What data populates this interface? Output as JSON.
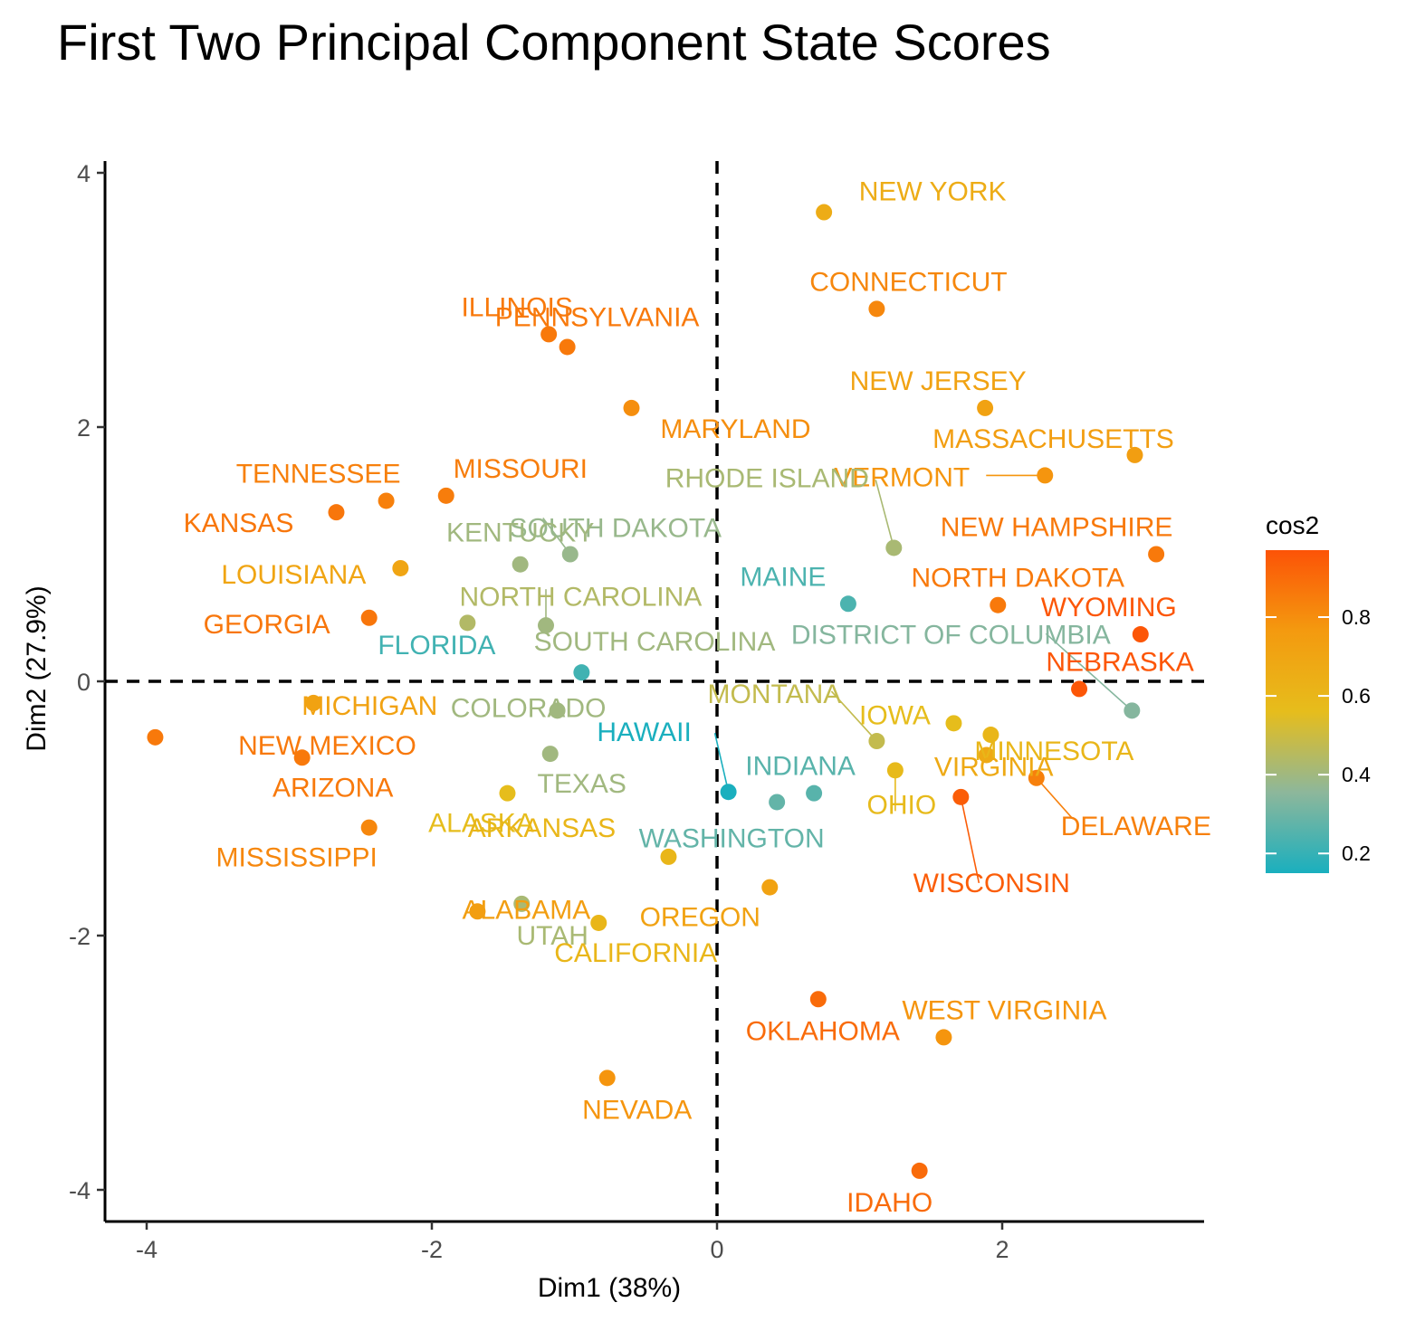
{
  "chart_data": {
    "type": "scatter",
    "title": "First Two Principal Component State Scores",
    "xlabel": "Dim1 (38%)",
    "ylabel": "Dim2 (27.9%)",
    "xlim": [
      -4.25,
      3.4
    ],
    "ylim": [
      -4.2,
      4.1
    ],
    "xticks": [
      -4,
      -2,
      0,
      2
    ],
    "yticks": [
      -4,
      -2,
      0,
      2,
      4
    ],
    "grid": false,
    "reference_lines": {
      "x": 0,
      "y": 0,
      "style": "dashed"
    },
    "legend": {
      "title": "cos2",
      "placement": "right",
      "ticks": [
        0.2,
        0.4,
        0.6,
        0.8
      ],
      "range": [
        0.15,
        0.97
      ],
      "colors": [
        "#1aafbe",
        "#8db79b",
        "#e6bd1c",
        "#f49a0f",
        "#fc5307"
      ]
    },
    "points": [
      {
        "label": "NEW YORK",
        "x": 0.75,
        "y": 3.69,
        "cos2": 0.66
      },
      {
        "label": "CONNECTICUT",
        "x": 1.12,
        "y": 2.93,
        "cos2": 0.82
      },
      {
        "label": "ILLINOIS",
        "x": -1.18,
        "y": 2.73,
        "cos2": 0.86
      },
      {
        "label": "PENNSYLVANIA",
        "x": -1.05,
        "y": 2.63,
        "cos2": 0.86
      },
      {
        "label": "MARYLAND",
        "x": -0.6,
        "y": 2.15,
        "cos2": 0.8
      },
      {
        "label": "NEW JERSEY",
        "x": 1.88,
        "y": 2.15,
        "cos2": 0.72
      },
      {
        "label": "MASSACHUSETTS",
        "x": 2.93,
        "y": 1.78,
        "cos2": 0.74
      },
      {
        "label": "VERMONT",
        "x": 2.3,
        "y": 1.62,
        "cos2": 0.78
      },
      {
        "label": "MISSOURI",
        "x": -1.9,
        "y": 1.46,
        "cos2": 0.85
      },
      {
        "label": "TENNESSEE",
        "x": -2.32,
        "y": 1.42,
        "cos2": 0.84
      },
      {
        "label": "KANSAS",
        "x": -2.67,
        "y": 1.33,
        "cos2": 0.87
      },
      {
        "label": "RHODE ISLAND",
        "x": 1.24,
        "y": 1.05,
        "cos2": 0.42
      },
      {
        "label": "NEW HAMPSHIRE",
        "x": 3.08,
        "y": 1.0,
        "cos2": 0.86
      },
      {
        "label": "SOUTH DAKOTA",
        "x": -1.03,
        "y": 1.0,
        "cos2": 0.38
      },
      {
        "label": "KENTUCKY",
        "x": -1.38,
        "y": 0.92,
        "cos2": 0.4
      },
      {
        "label": "LOUISIANA",
        "x": -2.22,
        "y": 0.89,
        "cos2": 0.7
      },
      {
        "label": "MAINE",
        "x": 0.92,
        "y": 0.61,
        "cos2": 0.24
      },
      {
        "label": "NORTH DAKOTA",
        "x": 1.97,
        "y": 0.6,
        "cos2": 0.86
      },
      {
        "label": "GEORGIA",
        "x": -2.44,
        "y": 0.5,
        "cos2": 0.87
      },
      {
        "label": "NORTH CAROLINA",
        "x": -1.75,
        "y": 0.46,
        "cos2": 0.44
      },
      {
        "label": "SOUTH CAROLINA",
        "x": -1.2,
        "y": 0.44,
        "cos2": 0.4
      },
      {
        "label": "WYOMING",
        "x": 2.97,
        "y": 0.37,
        "cos2": 0.96
      },
      {
        "label": "FLORIDA",
        "x": -0.95,
        "y": 0.07,
        "cos2": 0.22
      },
      {
        "label": "NEBRASKA",
        "x": 2.54,
        "y": -0.06,
        "cos2": 0.96
      },
      {
        "label": "DISTRICT OF COLUMBIA",
        "x": 2.91,
        "y": -0.23,
        "cos2": 0.34
      },
      {
        "label": "MICHIGAN",
        "x": -2.83,
        "y": -0.17,
        "cos2": 0.72
      },
      {
        "label": "COLORADO",
        "x": -1.12,
        "y": -0.23,
        "cos2": 0.4
      },
      {
        "label": "IOWA",
        "x": 1.66,
        "y": -0.33,
        "cos2": 0.56
      },
      {
        "label": "MINNESOTA",
        "x": 1.92,
        "y": -0.42,
        "cos2": 0.6
      },
      {
        "label": "NEW MEXICO",
        "x": -3.94,
        "y": -0.44,
        "cos2": 0.86
      },
      {
        "label": "MONTANA",
        "x": 1.12,
        "y": -0.47,
        "cos2": 0.48
      },
      {
        "label": "TEXAS",
        "x": -1.17,
        "y": -0.57,
        "cos2": 0.4
      },
      {
        "label": "ARIZONA",
        "x": -2.91,
        "y": -0.6,
        "cos2": 0.86
      },
      {
        "label": "VIRGINIA",
        "x": 1.89,
        "y": -0.58,
        "cos2": 0.68
      },
      {
        "label": "OHIO",
        "x": 1.25,
        "y": -0.7,
        "cos2": 0.58
      },
      {
        "label": "DELAWARE",
        "x": 2.24,
        "y": -0.76,
        "cos2": 0.84
      },
      {
        "label": "ALASKA",
        "x": -1.47,
        "y": -0.88,
        "cos2": 0.56
      },
      {
        "label": "HAWAII",
        "x": 0.08,
        "y": -0.87,
        "cos2": 0.15
      },
      {
        "label": "INDIANA",
        "x": 0.68,
        "y": -0.88,
        "cos2": 0.26
      },
      {
        "label": "WISCONSIN",
        "x": 1.71,
        "y": -0.91,
        "cos2": 0.94
      },
      {
        "label": "WASHINGTON",
        "x": 0.42,
        "y": -0.95,
        "cos2": 0.28
      },
      {
        "label": "MISSISSIPPI",
        "x": -2.44,
        "y": -1.15,
        "cos2": 0.82
      },
      {
        "label": "ARKANSAS",
        "x": -0.34,
        "y": -1.38,
        "cos2": 0.6
      },
      {
        "label": "OREGON",
        "x": 0.37,
        "y": -1.62,
        "cos2": 0.72
      },
      {
        "label": "UTAH",
        "x": -1.37,
        "y": -1.75,
        "cos2": 0.42
      },
      {
        "label": "ALABAMA",
        "x": -1.68,
        "y": -1.81,
        "cos2": 0.74
      },
      {
        "label": "CALIFORNIA",
        "x": -0.83,
        "y": -1.9,
        "cos2": 0.6
      },
      {
        "label": "OKLAHOMA",
        "x": 0.71,
        "y": -2.5,
        "cos2": 0.9
      },
      {
        "label": "WEST VIRGINIA",
        "x": 1.59,
        "y": -2.8,
        "cos2": 0.78
      },
      {
        "label": "NEVADA",
        "x": -0.77,
        "y": -3.12,
        "cos2": 0.78
      },
      {
        "label": "IDAHO",
        "x": 1.42,
        "y": -3.85,
        "cos2": 0.9
      }
    ]
  }
}
